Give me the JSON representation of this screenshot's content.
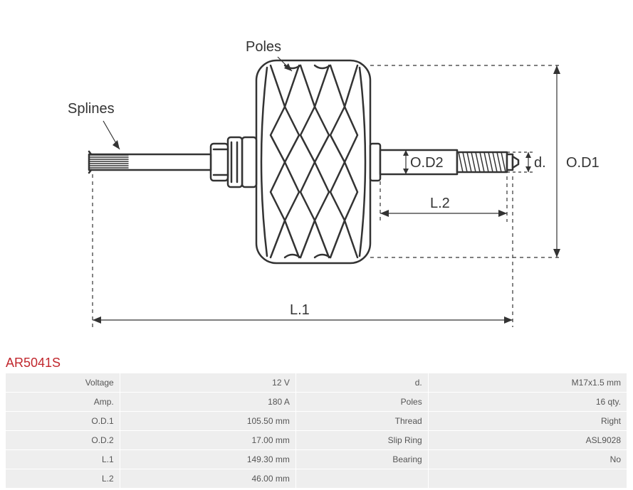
{
  "part_number": "AR5041S",
  "diagram": {
    "labels": {
      "poles": "Poles",
      "splines": "Splines",
      "od1": "O.D1",
      "od2": "O.D2",
      "d": "d.",
      "l1": "L.1",
      "l2": "L.2"
    },
    "colors": {
      "stroke": "#333333",
      "dashed": "#333333",
      "fill": "#ffffff",
      "text": "#333333",
      "part_number": "#c1272d",
      "table_bg": "#eeeeee",
      "table_text": "#555555"
    },
    "stroke_width": 2.5,
    "dash": "4 4"
  },
  "specs": {
    "left": [
      {
        "label": "Voltage",
        "value": "12 V"
      },
      {
        "label": "Amp.",
        "value": "180 A"
      },
      {
        "label": "O.D.1",
        "value": "105.50 mm"
      },
      {
        "label": "O.D.2",
        "value": "17.00 mm"
      },
      {
        "label": "L.1",
        "value": "149.30 mm"
      },
      {
        "label": "L.2",
        "value": "46.00 mm"
      }
    ],
    "right": [
      {
        "label": "d.",
        "value": "M17x1.5 mm"
      },
      {
        "label": "Poles",
        "value": "16 qty."
      },
      {
        "label": "Thread",
        "value": "Right"
      },
      {
        "label": "Slip Ring",
        "value": "ASL9028"
      },
      {
        "label": "Bearing",
        "value": "No"
      },
      {
        "label": "",
        "value": ""
      }
    ]
  }
}
